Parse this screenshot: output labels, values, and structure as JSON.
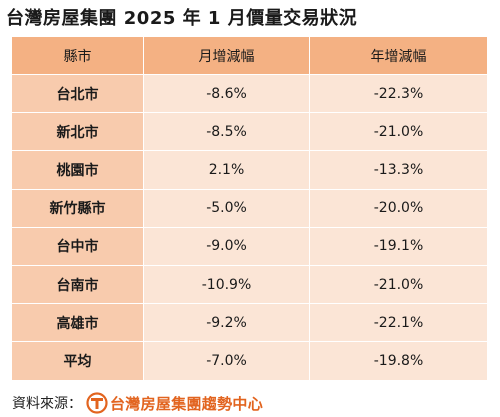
{
  "title": "台灣房屋集團 2025 年 1 月價量交易狀況",
  "table": {
    "headers": [
      "縣市",
      "月增減幅",
      "年增減幅"
    ],
    "rows": [
      {
        "city": "台北市",
        "monthly": "-8.6%",
        "yearly": "-22.3%"
      },
      {
        "city": "新北市",
        "monthly": "-8.5%",
        "yearly": "-21.0%"
      },
      {
        "city": "桃園市",
        "monthly": "2.1%",
        "yearly": "-13.3%"
      },
      {
        "city": "新竹縣市",
        "monthly": "-5.0%",
        "yearly": "-20.0%"
      },
      {
        "city": "台中市",
        "monthly": "-9.0%",
        "yearly": "-19.1%"
      },
      {
        "city": "台南市",
        "monthly": "-10.9%",
        "yearly": "-21.0%"
      },
      {
        "city": "高雄市",
        "monthly": "-9.2%",
        "yearly": "-22.1%"
      },
      {
        "city": "平均",
        "monthly": "-7.0%",
        "yearly": "-19.8%"
      }
    ]
  },
  "source": {
    "label": "資料來源：",
    "brand_name": "台灣房屋集團趨勢中心",
    "logo_icon": "taiwan-realty-logo-icon"
  },
  "colors": {
    "header_bg": "#f4b183",
    "city_bg": "#f8cbad",
    "value_bg": "#fbe5d6",
    "brand": "#e2641f"
  }
}
